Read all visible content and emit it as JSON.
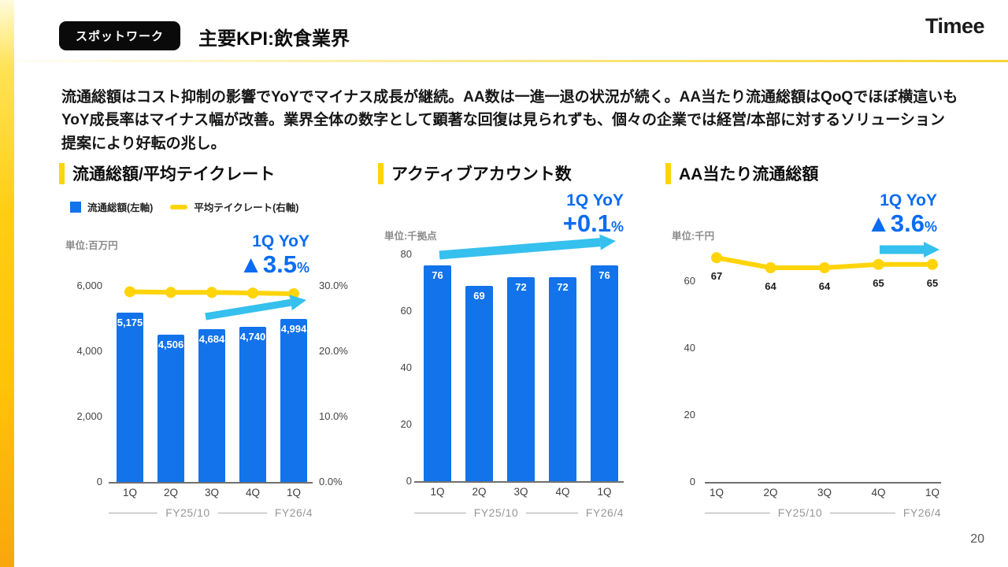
{
  "slide": {
    "badge": "スポットワーク",
    "title": "主要KPI:飲食業界",
    "logo": "Timee",
    "summary": "流通総額はコスト抑制の影響でYoYでマイナス成長が継続。AA数は一進一退の状況が続く。AA当たり流通総額はQoQでほぼ横這いもYoY成長率はマイナス幅が改善。業界全体の数字として顕著な回復は見られずも、個々の企業では経営/本部に対するソリューション提案により好転の兆し。",
    "page_number": "20"
  },
  "colors": {
    "brand_blue": "#1273EB",
    "accent_yellow": "#FFD40A",
    "arrow_cyan": "#35C0EE",
    "badge_black": "#0A0A0A",
    "annotation_blue": "#0A6CF2"
  },
  "chart_data": [
    {
      "type": "bar",
      "title": "流通総額/平均テイクレート",
      "unit": "単位:百万円",
      "legend": [
        {
          "label": "流通総額(左軸)",
          "color": "#1273EB",
          "swatch": "square"
        },
        {
          "label": "平均テイクレート(右軸)",
          "color": "#FFD40A",
          "swatch": "line"
        }
      ],
      "annotation": {
        "label": "1Q YoY",
        "value": "▲3.5",
        "unit": "%"
      },
      "categories": [
        "1Q",
        "2Q",
        "3Q",
        "4Q",
        "1Q"
      ],
      "fiscal_periods": [
        "FY25/10",
        "FY26/4"
      ],
      "series": [
        {
          "name": "流通総額(左軸)",
          "type": "bar",
          "axis": "left",
          "values": [
            5175,
            4506,
            4684,
            4740,
            4994
          ],
          "labels": [
            "5,175",
            "4,506",
            "4,684",
            "4,740",
            "4,994"
          ]
        },
        {
          "name": "平均テイクレート(右軸)",
          "type": "line",
          "axis": "right",
          "approx": true,
          "values": [
            29.1,
            29.0,
            29.0,
            28.9,
            28.8
          ]
        }
      ],
      "left_axis": {
        "max": 6000,
        "values": [
          0,
          2000,
          4000,
          6000
        ],
        "label_ticks": [
          "0",
          "2,000",
          "4,000",
          "6,000"
        ]
      },
      "right_axis": {
        "max": 30,
        "values": [
          0,
          10,
          20,
          30
        ],
        "label_ticks": [
          "0.0%",
          "10.0%",
          "20.0%",
          "30.0%"
        ]
      }
    },
    {
      "type": "bar",
      "title": "アクティブアカウント数",
      "unit": "単位:千拠点",
      "annotation": {
        "label": "1Q YoY",
        "value": "+0.1",
        "unit": "%"
      },
      "categories": [
        "1Q",
        "2Q",
        "3Q",
        "4Q",
        "1Q"
      ],
      "fiscal_periods": [
        "FY25/10",
        "FY26/4"
      ],
      "series": [
        {
          "name": "アクティブアカウント数",
          "type": "bar",
          "axis": "left",
          "values": [
            76,
            69,
            72,
            72,
            76
          ],
          "labels": [
            "76",
            "69",
            "72",
            "72",
            "76"
          ]
        }
      ],
      "left_axis": {
        "max": 80,
        "values": [
          0,
          20,
          40,
          60,
          80
        ],
        "label_ticks": [
          "0",
          "20",
          "40",
          "60",
          "80"
        ]
      }
    },
    {
      "type": "line",
      "title": "AA当たり流通総額",
      "unit": "単位:千円",
      "annotation": {
        "label": "1Q YoY",
        "value": "▲3.6",
        "unit": "%"
      },
      "categories": [
        "1Q",
        "2Q",
        "3Q",
        "4Q",
        "1Q"
      ],
      "fiscal_periods": [
        "FY25/10",
        "FY26/4"
      ],
      "series": [
        {
          "name": "AA当たり流通総額",
          "type": "line",
          "axis": "left",
          "values": [
            67,
            64,
            64,
            65,
            65
          ],
          "labels": [
            "67",
            "64",
            "64",
            "65",
            "65"
          ]
        }
      ],
      "left_axis": {
        "max": 60,
        "values": [
          0,
          20,
          40,
          60
        ],
        "label_ticks": [
          "0",
          "20",
          "40",
          "60"
        ]
      }
    }
  ]
}
